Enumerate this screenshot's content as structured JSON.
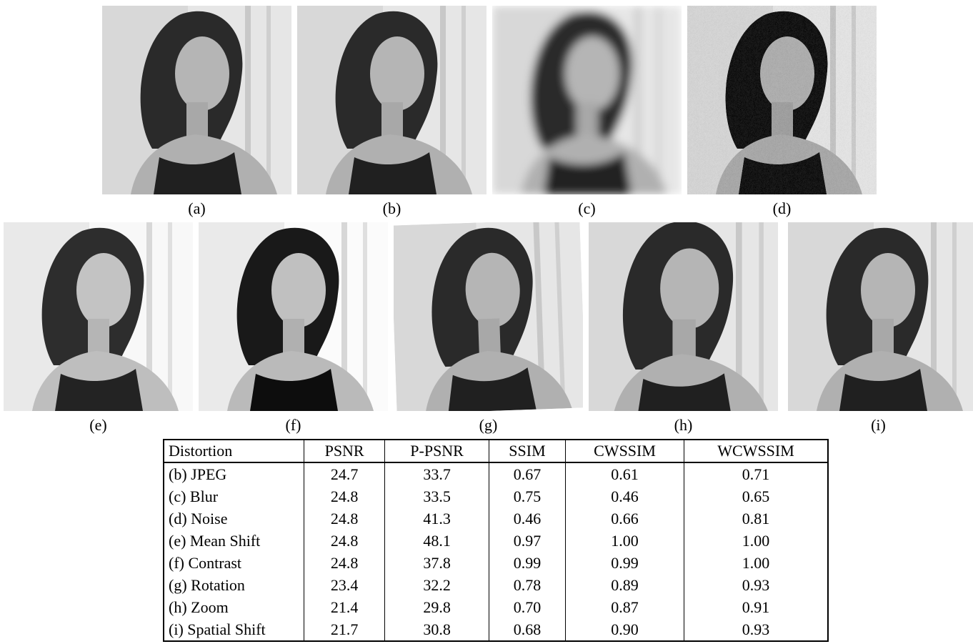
{
  "figure": {
    "panels": [
      "(a)",
      "(b)",
      "(c)",
      "(d)",
      "(e)",
      "(f)",
      "(g)",
      "(h)",
      "(i)"
    ]
  },
  "table": {
    "header": [
      "Distortion",
      "PSNR",
      "P-PSNR",
      "SSIM",
      "CWSSIM",
      "WCWSSIM"
    ],
    "rows": [
      [
        "(b) JPEG",
        "24.7",
        "33.7",
        "0.67",
        "0.61",
        "0.71"
      ],
      [
        "(c) Blur",
        "24.8",
        "33.5",
        "0.75",
        "0.46",
        "0.65"
      ],
      [
        "(d) Noise",
        "24.8",
        "41.3",
        "0.46",
        "0.66",
        "0.81"
      ],
      [
        "(e) Mean Shift",
        "24.8",
        "48.1",
        "0.97",
        "1.00",
        "1.00"
      ],
      [
        "(f) Contrast",
        "24.8",
        "37.8",
        "0.99",
        "0.99",
        "1.00"
      ],
      [
        "(g) Rotation",
        "23.4",
        "32.2",
        "0.78",
        "0.89",
        "0.93"
      ],
      [
        "(h) Zoom",
        "21.4",
        "29.8",
        "0.70",
        "0.87",
        "0.91"
      ],
      [
        "(i) Spatial Shift",
        "21.7",
        "30.8",
        "0.68",
        "0.90",
        "0.93"
      ]
    ]
  }
}
